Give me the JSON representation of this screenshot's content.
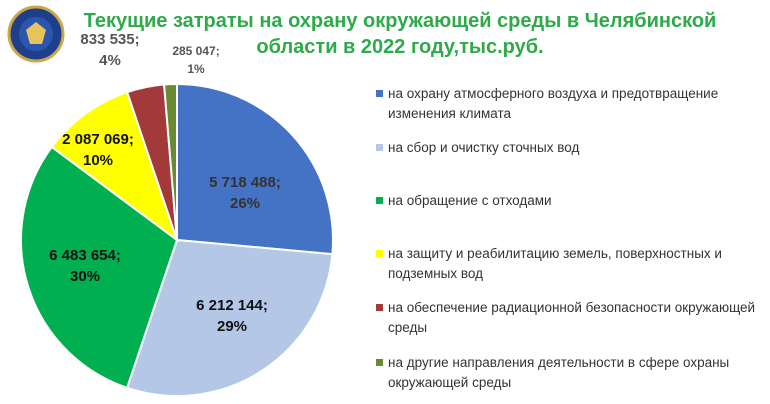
{
  "chart_data": {
    "type": "pie",
    "title": "Текущие затраты на охрану окружающей среды в Челябинской области в 2022 году,тыс.руб.",
    "categories": [
      "на охрану атмосферного воздуха и предотвращение изменения климата",
      "на сбор и очистку сточных вод",
      "на обращение с отходами",
      "на защиту и реабилитацию земель, поверхностных и подземных вод",
      "на обеспечение радиационной безопасности окружающей среды",
      "на другие направления деятельности в сфере охраны окружающей среды"
    ],
    "values": [
      5718488,
      6212144,
      6483654,
      2087069,
      833535,
      285047
    ],
    "value_labels": [
      "5 718 488;",
      "6 212 144;",
      "6 483 654;",
      "2 087 069;",
      "833 535;",
      "285 047;"
    ],
    "percent_labels": [
      "26%",
      "29%",
      "30%",
      "10%",
      "4%",
      "1%"
    ],
    "colors": [
      "#4472c4",
      "#b4c7e7",
      "#00b050",
      "#ffff00",
      "#a33a3a",
      "#6a8a32"
    ],
    "legend": "right"
  }
}
